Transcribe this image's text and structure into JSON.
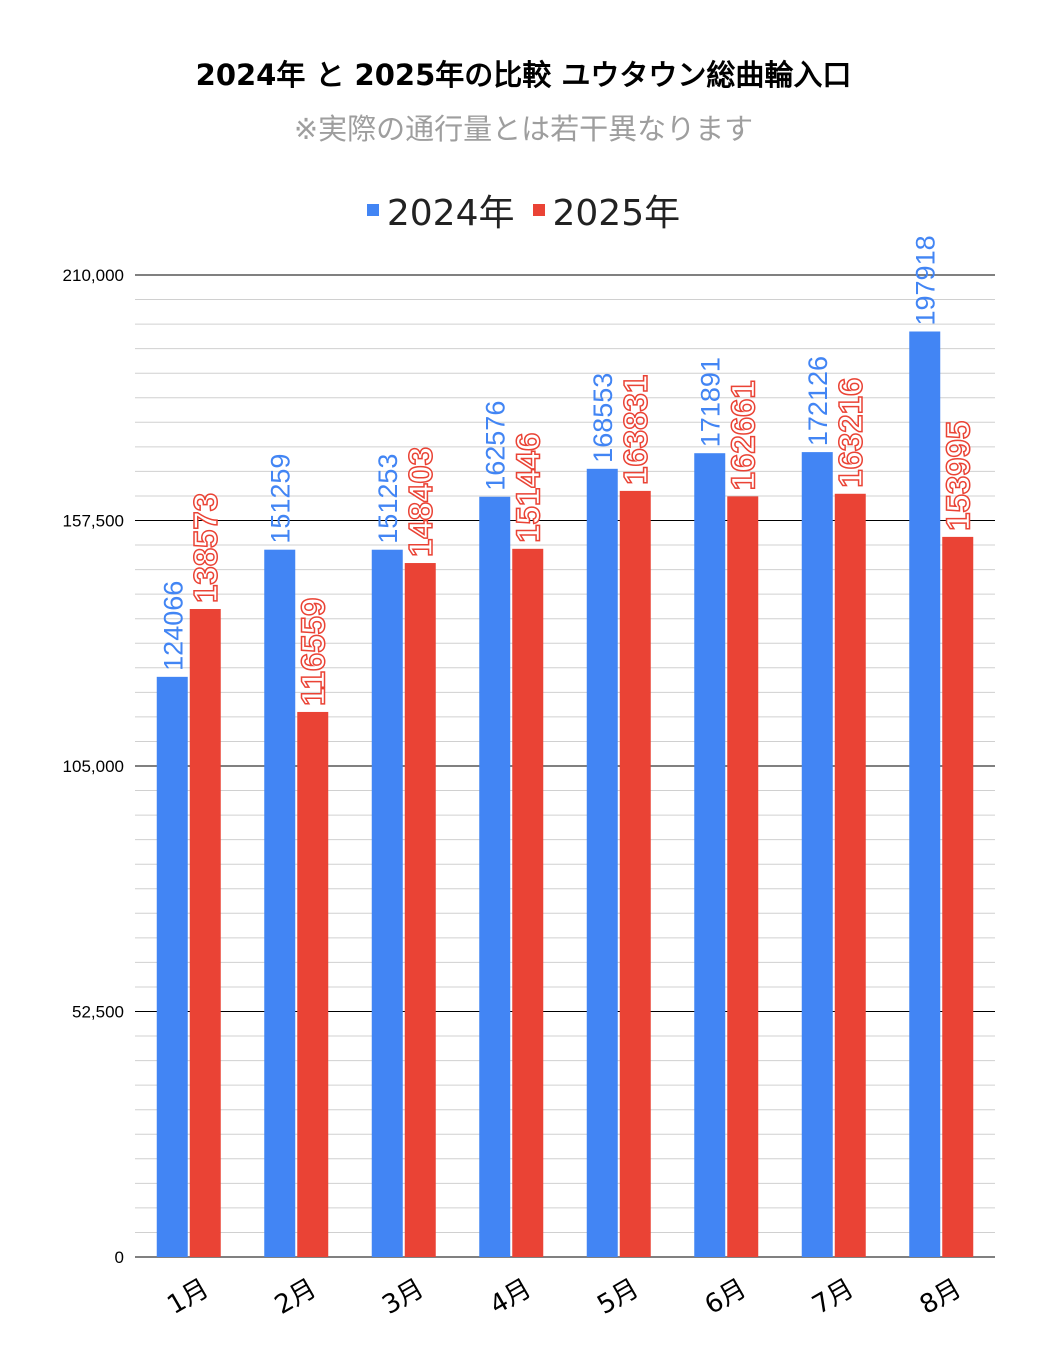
{
  "chart_data": {
    "type": "bar",
    "title": "2024年 と 2025年の比較  ユウタウン総曲輪入口",
    "subtitle": "※実際の通行量とは若干異なります",
    "categories": [
      "1月",
      "2月",
      "3月",
      "4月",
      "5月",
      "6月",
      "7月",
      "8月"
    ],
    "series": [
      {
        "name": "2024年",
        "color": "#4285f4",
        "values": [
          124066,
          151259,
          151253,
          162576,
          168553,
          171891,
          172126,
          197918
        ]
      },
      {
        "name": "2025年",
        "color": "#ea4335",
        "values": [
          138573,
          116559,
          148403,
          151446,
          163831,
          162661,
          163216,
          153995
        ]
      }
    ],
    "xlabel": "",
    "ylabel": "",
    "ylim": [
      0,
      210000
    ],
    "yticks": [
      0,
      52500,
      105000,
      157500,
      210000
    ],
    "ytick_labels": [
      "0",
      "52,500",
      "105,000",
      "157,500",
      "210,000"
    ],
    "minor_grid_step": 5250,
    "grid": true,
    "legend_position": "top"
  }
}
